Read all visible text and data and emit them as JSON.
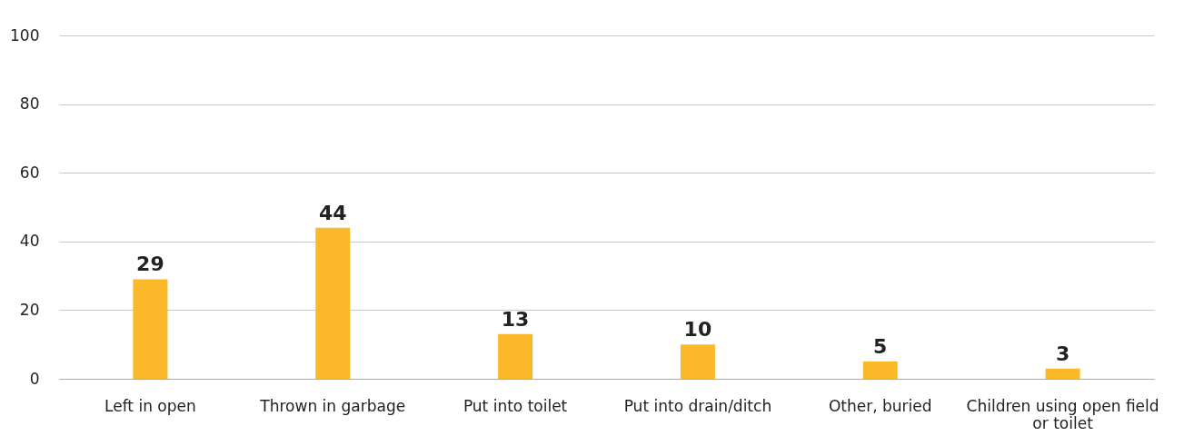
{
  "chart_data": {
    "type": "bar",
    "categories": [
      "Left in open",
      "Thrown in garbage",
      "Put into toilet",
      "Put into drain/ditch",
      "Other, buried",
      "Children using open field or toilet"
    ],
    "values": [
      29,
      44,
      13,
      10,
      5,
      3
    ],
    "color": "#fbb829",
    "ylim": [
      0,
      100
    ],
    "yticks": [
      0,
      20,
      40,
      60,
      80,
      100
    ],
    "grid": "y",
    "data_labels": true
  }
}
